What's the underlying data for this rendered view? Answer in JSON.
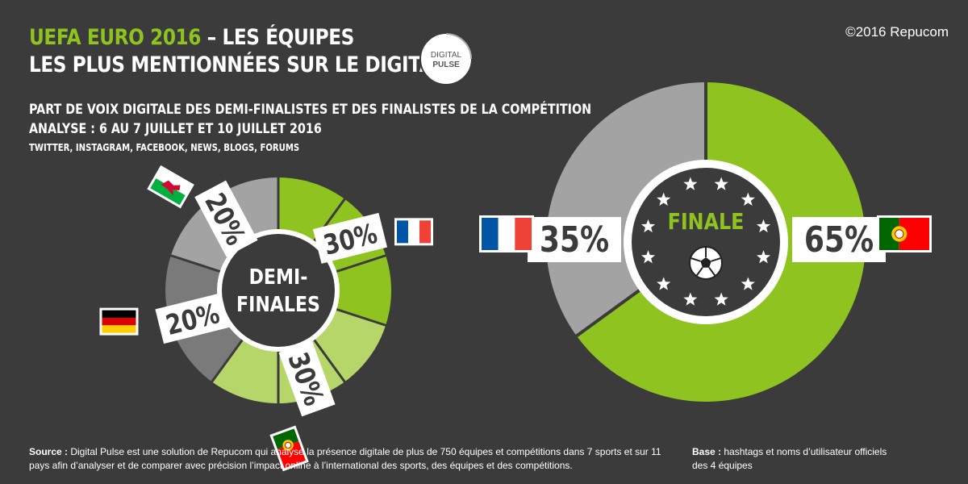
{
  "header": {
    "title_accent": "UEFA EURO 2016",
    "title_rest": " – LES ÉQUIPES",
    "title_line2": "LES PLUS MENTIONNÉES SUR LE DIGITAL",
    "copyright": "©2016 Repucom",
    "logo_line1": "DIGITAL",
    "logo_line2": "PULSE"
  },
  "subtitle": {
    "line1": "PART DE VOIX DIGITALE DES DEMI-FINALISTES ET DES FINALISTES DE LA COMPÉTITION",
    "line2": "ANALYSE : 6 AU 7 JUILLET ET 10 JUILLET 2016",
    "line3": "TWITTER, INSTAGRAM, FACEBOOK, NEWS, BLOGS, FORUMS"
  },
  "chart_data": [
    {
      "type": "pie",
      "title_line1": "DEMI-",
      "title_line2": "FINALES",
      "slices": [
        {
          "team": "France",
          "value": 30,
          "label": "30%",
          "color": "#8fc31f"
        },
        {
          "team": "Portugal",
          "value": 30,
          "label": "30%",
          "color": "#b6d66a"
        },
        {
          "team": "Allemagne",
          "value": 20,
          "label": "20%",
          "color": "#7a7a7a"
        },
        {
          "team": "Pays de Galles",
          "value": 20,
          "label": "20%",
          "color": "#a3a3a3"
        }
      ]
    },
    {
      "type": "pie",
      "title": "FINALE",
      "slices": [
        {
          "team": "Portugal",
          "value": 65,
          "label": "65%",
          "color": "#8fc31f"
        },
        {
          "team": "France",
          "value": 35,
          "label": "35%",
          "color": "#a3a3a3"
        }
      ]
    }
  ],
  "footer": {
    "source_label": "Source :",
    "source_text": " Digital Pulse est une solution de Repucom qui analyse la présence digitale de plus de 750 équipes et compétitions dans 7 sports et sur 11 pays afin d’analyser et de comparer avec précision l’impact online à l’international des sports, des équipes et des compétitions.",
    "base_label": "Base :",
    "base_text": " hashtags et noms d’utilisateur officiels des 4 équipes"
  }
}
